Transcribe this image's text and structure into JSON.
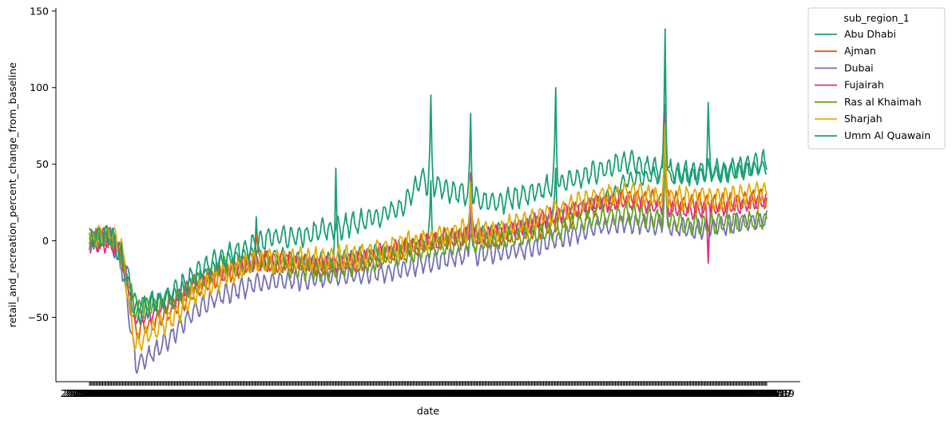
{
  "chart_data": {
    "type": "line",
    "xlabel": "date",
    "ylabel": "retail_and_recreation_percent_change_from_baseline",
    "ylim": [
      -92,
      152
    ],
    "yticks": [
      -50,
      0,
      50,
      100,
      150
    ],
    "ytick_labels": [
      "−50",
      "0",
      "50",
      "100",
      "150"
    ],
    "x_range": [
      "2020-02-15",
      "2021-10-20"
    ],
    "grid": false,
    "legend": {
      "title": "sub_region_1",
      "placement": "upper-right-outside"
    },
    "series": [
      {
        "name": "Abu Dhabi",
        "color": "#1b9e77",
        "anchors": [
          [
            "2020-02-15",
            0
          ],
          [
            "2020-03-01",
            3
          ],
          [
            "2020-03-10",
            0
          ],
          [
            "2020-03-20",
            -20
          ],
          [
            "2020-03-28",
            -42
          ],
          [
            "2020-04-10",
            -40
          ],
          [
            "2020-05-01",
            -36
          ],
          [
            "2020-05-20",
            -28
          ],
          [
            "2020-06-10",
            -16
          ],
          [
            "2020-07-01",
            -10
          ],
          [
            "2020-08-01",
            -10
          ],
          [
            "2020-09-01",
            -14
          ],
          [
            "2020-10-01",
            -12
          ],
          [
            "2020-11-01",
            -8
          ],
          [
            "2020-12-01",
            -4
          ],
          [
            "2021-01-01",
            2
          ],
          [
            "2021-02-01",
            5
          ],
          [
            "2021-03-01",
            8
          ],
          [
            "2021-04-01",
            12
          ],
          [
            "2021-05-01",
            20
          ],
          [
            "2021-06-01",
            28
          ],
          [
            "2021-06-15",
            40
          ],
          [
            "2021-07-01",
            42
          ],
          [
            "2021-08-01",
            42
          ],
          [
            "2021-09-01",
            44
          ],
          [
            "2021-10-20",
            48
          ]
        ],
        "amplitude": 6,
        "spikes": [
          [
            "2020-07-15",
            20
          ],
          [
            "2020-09-25",
            42
          ],
          [
            "2020-12-20",
            38
          ],
          [
            "2021-01-25",
            38
          ],
          [
            "2021-04-12",
            50
          ],
          [
            "2021-07-20",
            95
          ],
          [
            "2021-08-28",
            50
          ]
        ]
      },
      {
        "name": "Ajman",
        "color": "#d95f02",
        "anchors": [
          [
            "2020-02-15",
            0
          ],
          [
            "2020-03-05",
            2
          ],
          [
            "2020-03-15",
            -10
          ],
          [
            "2020-03-28",
            -60
          ],
          [
            "2020-04-10",
            -55
          ],
          [
            "2020-05-01",
            -45
          ],
          [
            "2020-05-20",
            -32
          ],
          [
            "2020-06-15",
            -22
          ],
          [
            "2020-07-15",
            -12
          ],
          [
            "2020-08-15",
            -14
          ],
          [
            "2020-09-15",
            -16
          ],
          [
            "2020-10-15",
            -14
          ],
          [
            "2020-11-15",
            -8
          ],
          [
            "2020-12-15",
            -2
          ],
          [
            "2021-01-15",
            4
          ],
          [
            "2021-02-15",
            2
          ],
          [
            "2021-03-15",
            6
          ],
          [
            "2021-04-15",
            12
          ],
          [
            "2021-05-15",
            22
          ],
          [
            "2021-06-15",
            28
          ],
          [
            "2021-07-15",
            26
          ],
          [
            "2021-08-15",
            24
          ],
          [
            "2021-09-15",
            24
          ],
          [
            "2021-10-20",
            28
          ]
        ],
        "amplitude": 7,
        "spikes": [
          [
            "2020-07-15",
            5
          ],
          [
            "2021-01-25",
            42
          ],
          [
            "2021-07-20",
            75
          ]
        ]
      },
      {
        "name": "Dubai",
        "color": "#7570b3",
        "anchors": [
          [
            "2020-02-15",
            0
          ],
          [
            "2020-03-05",
            2
          ],
          [
            "2020-03-15",
            -15
          ],
          [
            "2020-03-28",
            -80
          ],
          [
            "2020-04-10",
            -75
          ],
          [
            "2020-05-01",
            -62
          ],
          [
            "2020-05-20",
            -45
          ],
          [
            "2020-06-15",
            -35
          ],
          [
            "2020-07-15",
            -28
          ],
          [
            "2020-08-15",
            -26
          ],
          [
            "2020-09-15",
            -24
          ],
          [
            "2020-10-15",
            -22
          ],
          [
            "2020-11-15",
            -20
          ],
          [
            "2020-12-15",
            -14
          ],
          [
            "2021-01-15",
            -10
          ],
          [
            "2021-02-15",
            -8
          ],
          [
            "2021-03-15",
            -6
          ],
          [
            "2021-04-15",
            2
          ],
          [
            "2021-05-15",
            8
          ],
          [
            "2021-06-15",
            12
          ],
          [
            "2021-07-15",
            10
          ],
          [
            "2021-08-15",
            8
          ],
          [
            "2021-09-15",
            10
          ],
          [
            "2021-10-20",
            14
          ]
        ],
        "amplitude": 7,
        "spikes": [
          [
            "2021-01-25",
            35
          ],
          [
            "2021-07-20",
            65
          ]
        ]
      },
      {
        "name": "Fujairah",
        "color": "#e7298a",
        "anchors": [
          [
            "2020-02-15",
            -4
          ],
          [
            "2020-03-05",
            -2
          ],
          [
            "2020-03-15",
            -8
          ],
          [
            "2020-03-28",
            -50
          ],
          [
            "2020-04-10",
            -48
          ],
          [
            "2020-05-01",
            -40
          ],
          [
            "2020-05-20",
            -28
          ],
          [
            "2020-06-15",
            -20
          ],
          [
            "2020-07-15",
            -14
          ],
          [
            "2020-08-15",
            -14
          ],
          [
            "2020-09-15",
            -16
          ],
          [
            "2020-10-15",
            -12
          ],
          [
            "2020-11-15",
            -6
          ],
          [
            "2020-12-15",
            -2
          ],
          [
            "2021-01-15",
            2
          ],
          [
            "2021-02-15",
            4
          ],
          [
            "2021-03-15",
            10
          ],
          [
            "2021-04-15",
            18
          ],
          [
            "2021-05-15",
            24
          ],
          [
            "2021-06-15",
            26
          ],
          [
            "2021-07-15",
            22
          ],
          [
            "2021-08-15",
            20
          ],
          [
            "2021-09-15",
            22
          ],
          [
            "2021-10-20",
            26
          ]
        ],
        "amplitude": 6,
        "spikes": [
          [
            "2021-01-25",
            44
          ],
          [
            "2021-07-20",
            80
          ],
          [
            "2021-08-28",
            -10
          ]
        ]
      },
      {
        "name": "Ras al Khaimah",
        "color": "#66a61e",
        "anchors": [
          [
            "2020-02-15",
            0
          ],
          [
            "2020-03-05",
            3
          ],
          [
            "2020-03-15",
            -10
          ],
          [
            "2020-03-28",
            -45
          ],
          [
            "2020-04-10",
            -44
          ],
          [
            "2020-05-01",
            -40
          ],
          [
            "2020-05-20",
            -28
          ],
          [
            "2020-06-15",
            -18
          ],
          [
            "2020-07-15",
            -14
          ],
          [
            "2020-08-15",
            -18
          ],
          [
            "2020-09-15",
            -20
          ],
          [
            "2020-10-15",
            -16
          ],
          [
            "2020-11-15",
            -10
          ],
          [
            "2020-12-15",
            -6
          ],
          [
            "2021-01-15",
            -2
          ],
          [
            "2021-02-15",
            0
          ],
          [
            "2021-03-15",
            4
          ],
          [
            "2021-04-15",
            8
          ],
          [
            "2021-05-15",
            14
          ],
          [
            "2021-06-15",
            18
          ],
          [
            "2021-07-15",
            14
          ],
          [
            "2021-08-15",
            10
          ],
          [
            "2021-09-15",
            12
          ],
          [
            "2021-10-20",
            14
          ]
        ],
        "amplitude": 7,
        "spikes": [
          [
            "2021-07-20",
            60
          ]
        ]
      },
      {
        "name": "Sharjah",
        "color": "#e6ab02",
        "anchors": [
          [
            "2020-02-15",
            2
          ],
          [
            "2020-03-05",
            6
          ],
          [
            "2020-03-15",
            -5
          ],
          [
            "2020-03-28",
            -70
          ],
          [
            "2020-04-10",
            -60
          ],
          [
            "2020-05-01",
            -50
          ],
          [
            "2020-05-20",
            -35
          ],
          [
            "2020-06-15",
            -22
          ],
          [
            "2020-07-15",
            -14
          ],
          [
            "2020-08-15",
            -12
          ],
          [
            "2020-09-15",
            -12
          ],
          [
            "2020-10-15",
            -10
          ],
          [
            "2020-11-15",
            -4
          ],
          [
            "2020-12-15",
            0
          ],
          [
            "2021-01-15",
            6
          ],
          [
            "2021-02-15",
            6
          ],
          [
            "2021-03-15",
            12
          ],
          [
            "2021-04-15",
            20
          ],
          [
            "2021-05-15",
            28
          ],
          [
            "2021-06-15",
            32
          ],
          [
            "2021-07-15",
            28
          ],
          [
            "2021-08-15",
            28
          ],
          [
            "2021-09-15",
            28
          ],
          [
            "2021-10-20",
            32
          ]
        ],
        "amplitude": 8,
        "spikes": [
          [
            "2021-01-25",
            30
          ],
          [
            "2021-07-20",
            72
          ]
        ]
      },
      {
        "name": "Umm Al Quawain",
        "color": "#1b9e77",
        "anchors": [
          [
            "2020-02-15",
            2
          ],
          [
            "2020-03-05",
            4
          ],
          [
            "2020-03-15",
            -10
          ],
          [
            "2020-03-28",
            -48
          ],
          [
            "2020-04-10",
            -42
          ],
          [
            "2020-05-01",
            -34
          ],
          [
            "2020-05-20",
            -22
          ],
          [
            "2020-06-10",
            -12
          ],
          [
            "2020-07-01",
            -6
          ],
          [
            "2020-07-25",
            2
          ],
          [
            "2020-08-25",
            4
          ],
          [
            "2020-09-25",
            8
          ],
          [
            "2020-10-25",
            14
          ],
          [
            "2020-11-25",
            22
          ],
          [
            "2020-12-10",
            40
          ],
          [
            "2020-12-28",
            34
          ],
          [
            "2021-01-15",
            32
          ],
          [
            "2021-02-15",
            24
          ],
          [
            "2021-03-15",
            30
          ],
          [
            "2021-04-15",
            38
          ],
          [
            "2021-05-15",
            44
          ],
          [
            "2021-06-15",
            52
          ],
          [
            "2021-07-15",
            46
          ],
          [
            "2021-08-15",
            44
          ],
          [
            "2021-09-15",
            46
          ],
          [
            "2021-10-20",
            52
          ]
        ],
        "amplitude": 8,
        "spikes": [
          [
            "2020-12-20",
            90
          ],
          [
            "2021-01-25",
            79
          ],
          [
            "2021-04-12",
            95
          ],
          [
            "2021-07-20",
            141
          ],
          [
            "2021-08-28",
            86
          ]
        ]
      }
    ]
  }
}
